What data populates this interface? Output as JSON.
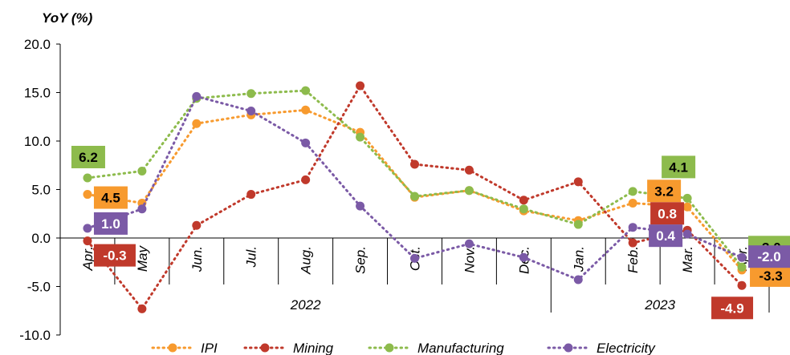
{
  "chart_data": {
    "type": "line",
    "ylabel": "YoY (%)",
    "ylim": [
      -10,
      20
    ],
    "yticks": [
      "20.0",
      "15.0",
      "10.0",
      "5.0",
      "0.0",
      "-5.0",
      "-10.0"
    ],
    "categories": [
      "Apr.",
      "May",
      "Jun.",
      "Jul.",
      "Aug.",
      "Sep.",
      "Oct.",
      "Nov.",
      "Dec.",
      "Jan.",
      "Feb.",
      "Mar.",
      "Apr."
    ],
    "years": [
      "2022",
      "2023"
    ],
    "grid": false,
    "legend_position": "bottom",
    "series": [
      {
        "name": "IPI",
        "color": "#F79A2E",
        "values": [
          4.5,
          3.6,
          11.8,
          12.7,
          13.2,
          10.9,
          4.2,
          4.9,
          2.8,
          1.8,
          3.6,
          3.2,
          -3.3
        ]
      },
      {
        "name": "Mining",
        "color": "#C0392B",
        "values": [
          -0.3,
          -7.3,
          1.3,
          4.5,
          6.0,
          15.7,
          7.6,
          7.0,
          3.9,
          5.8,
          -0.5,
          0.8,
          -4.9
        ]
      },
      {
        "name": "Manufacturing",
        "color": "#8DBB4C",
        "values": [
          6.2,
          6.9,
          14.4,
          14.9,
          15.2,
          10.4,
          4.3,
          4.9,
          3.0,
          1.4,
          4.8,
          4.1,
          -3.0
        ]
      },
      {
        "name": "Electricity",
        "color": "#7B5AA6",
        "values": [
          1.0,
          3.0,
          14.6,
          13.1,
          9.8,
          3.3,
          -2.1,
          -0.6,
          -2.0,
          -4.3,
          1.1,
          0.4,
          -2.0
        ]
      }
    ],
    "data_labels": [
      {
        "series": "IPI",
        "index": 0,
        "text": "4.5"
      },
      {
        "series": "Mining",
        "index": 0,
        "text": "-0.3"
      },
      {
        "series": "Manufacturing",
        "index": 0,
        "text": "6.2"
      },
      {
        "series": "Electricity",
        "index": 0,
        "text": "1.0"
      },
      {
        "series": "IPI",
        "index": 11,
        "text": "3.2"
      },
      {
        "series": "Mining",
        "index": 11,
        "text": "0.8"
      },
      {
        "series": "Manufacturing",
        "index": 11,
        "text": "4.1"
      },
      {
        "series": "Electricity",
        "index": 11,
        "text": "0.4"
      },
      {
        "series": "IPI",
        "index": 12,
        "text": "-3.3"
      },
      {
        "series": "Mining",
        "index": 12,
        "text": "-4.9"
      },
      {
        "series": "Manufacturing",
        "index": 12,
        "text": "-3.0"
      },
      {
        "series": "Electricity",
        "index": 12,
        "text": "-2.0"
      }
    ]
  }
}
